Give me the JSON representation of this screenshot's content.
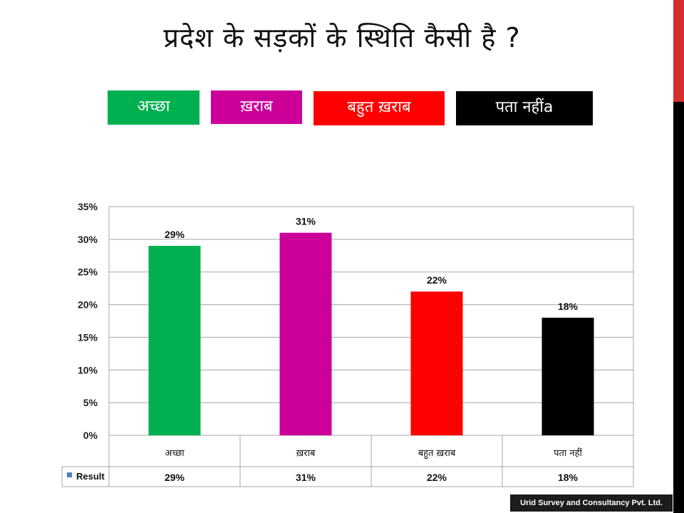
{
  "slide": {
    "title": "प्रदेश के सड़कों के स्थिति कैसी है ?",
    "footer": "Urid Survey and Consultancy Pvt. Ltd."
  },
  "legend": [
    {
      "label": "अच्छा",
      "color": "#00b050"
    },
    {
      "label": "ख़राब",
      "color": "#cc0099"
    },
    {
      "label": "बहुत ख़राब",
      "color": "#ff0000"
    },
    {
      "label": "पता नहींa",
      "color": "#000000"
    }
  ],
  "colors": {
    "side_bar": "#000000",
    "side_accent": "#d32f2f"
  },
  "chart_data": {
    "type": "bar",
    "categories": [
      "अच्छा",
      "ख़राब",
      "बहुत ख़राब",
      "पता नहीं"
    ],
    "series": [
      {
        "name": "Result",
        "values": [
          29,
          31,
          22,
          18
        ],
        "colors": [
          "#00b050",
          "#cc0099",
          "#ff0000",
          "#000000"
        ]
      }
    ],
    "data_labels": [
      "29%",
      "31%",
      "22%",
      "18%"
    ],
    "y_ticks": [
      "0%",
      "5%",
      "10%",
      "15%",
      "20%",
      "25%",
      "30%",
      "35%"
    ],
    "ylim": [
      0,
      35
    ],
    "grid": true,
    "data_table": true,
    "legend_key_color": "#4f81bd"
  }
}
